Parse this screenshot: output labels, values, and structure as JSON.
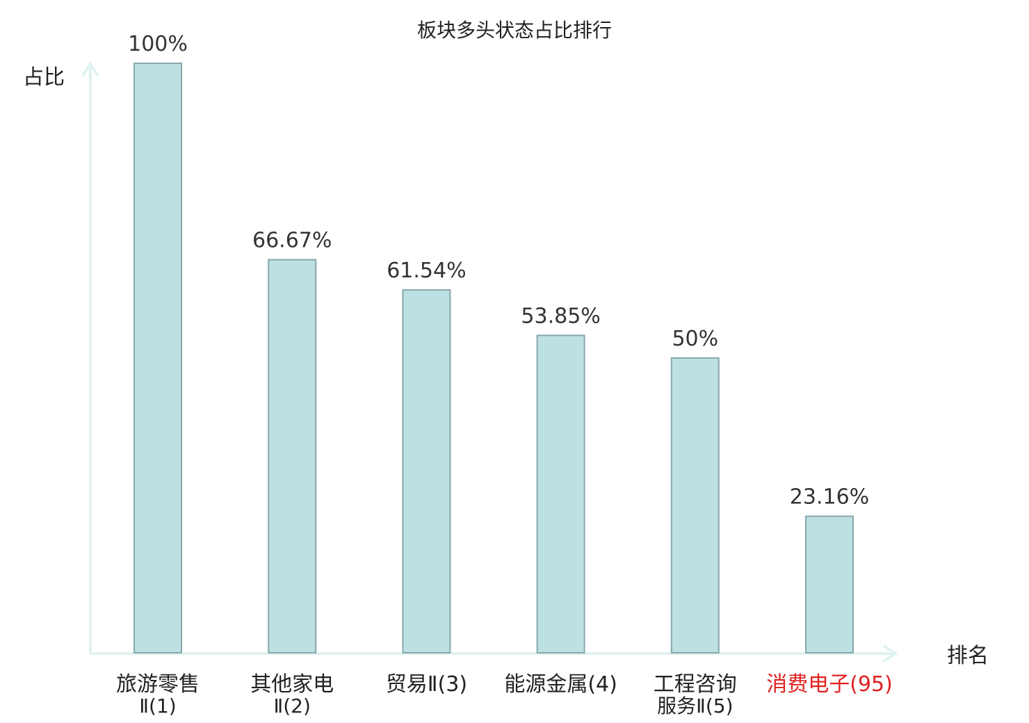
{
  "chart_data": {
    "type": "bar",
    "title": "板块多头状态占比排行",
    "xlabel": "排名",
    "ylabel": "占比",
    "categories": [
      {
        "line1": "旅游零售",
        "line2": "Ⅱ(1)",
        "highlight": false
      },
      {
        "line1": "其他家电",
        "line2": "Ⅱ(2)",
        "highlight": false
      },
      {
        "line1": "贸易Ⅱ(3)",
        "line2": "",
        "highlight": false
      },
      {
        "line1": "能源金属(4)",
        "line2": "",
        "highlight": false
      },
      {
        "line1": "工程咨询",
        "line2": "服务Ⅱ(5)",
        "highlight": false
      },
      {
        "line1": "消费电子(95)",
        "line2": "",
        "highlight": true
      }
    ],
    "values": [
      100,
      66.67,
      61.54,
      53.85,
      50,
      23.16
    ],
    "value_labels": [
      "100%",
      "66.67%",
      "61.54%",
      "53.85%",
      "50%",
      "23.16%"
    ],
    "ylim": [
      0,
      100
    ],
    "grid": false,
    "colors": {
      "bar_fill": "#bde0e3",
      "bar_stroke": "#87a9ad",
      "axis": "#e0f2f0",
      "text": "#222222",
      "highlight_text": "#e02020"
    }
  }
}
